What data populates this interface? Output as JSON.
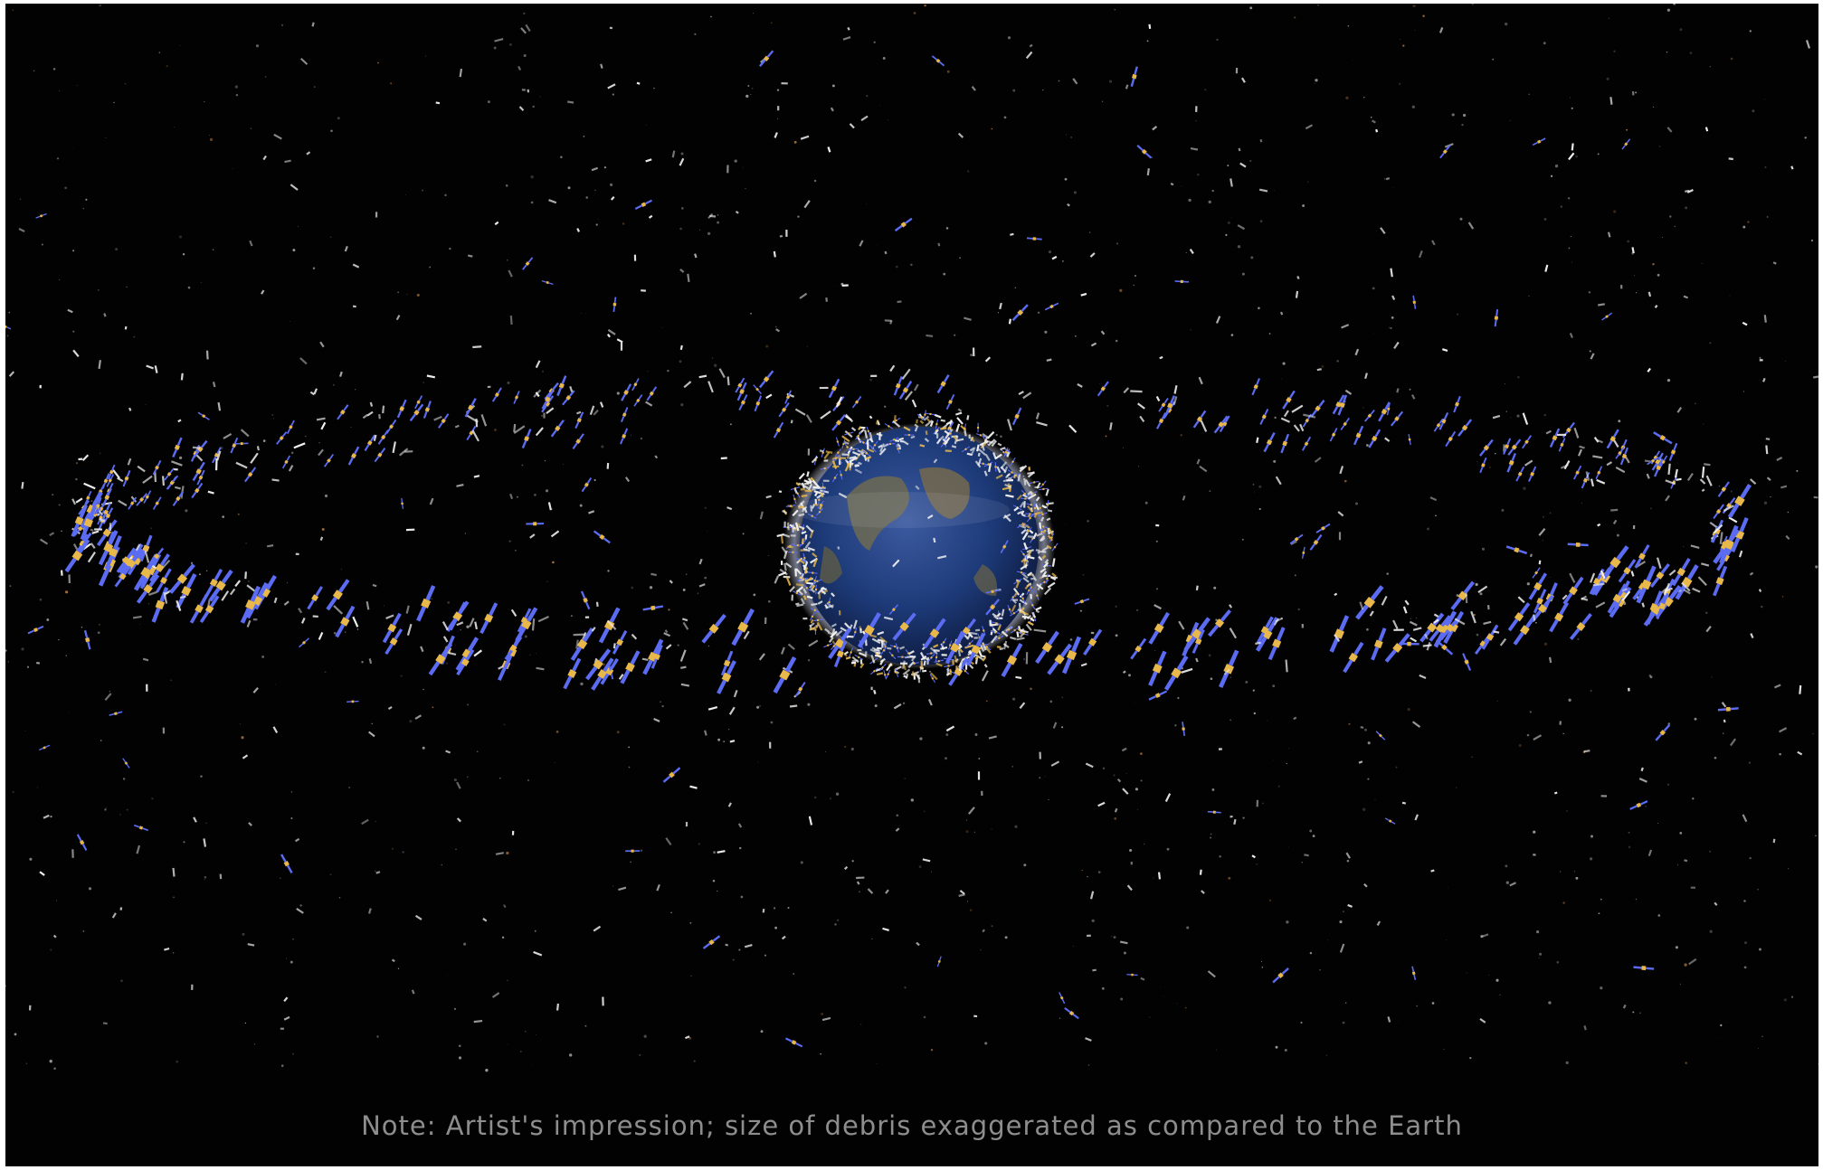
{
  "caption": "Note: Artist's impression; size of debris exaggerated as compared to the Earth",
  "colors": {
    "background": "#020202",
    "caption_text": "#8d8d8d",
    "satellite_panel": "#5b6cf2",
    "satellite_body": "#e8b84a",
    "debris": "#f2f2f2",
    "ocean": "#1d3a78",
    "land": "#6d6a52"
  },
  "scene": {
    "subject": "earth-icon",
    "rings": [
      "geostationary-ring",
      "low-earth-orbit-shell"
    ],
    "objects": [
      "satellite-icon",
      "debris-fragment-icon",
      "star-icon"
    ]
  }
}
